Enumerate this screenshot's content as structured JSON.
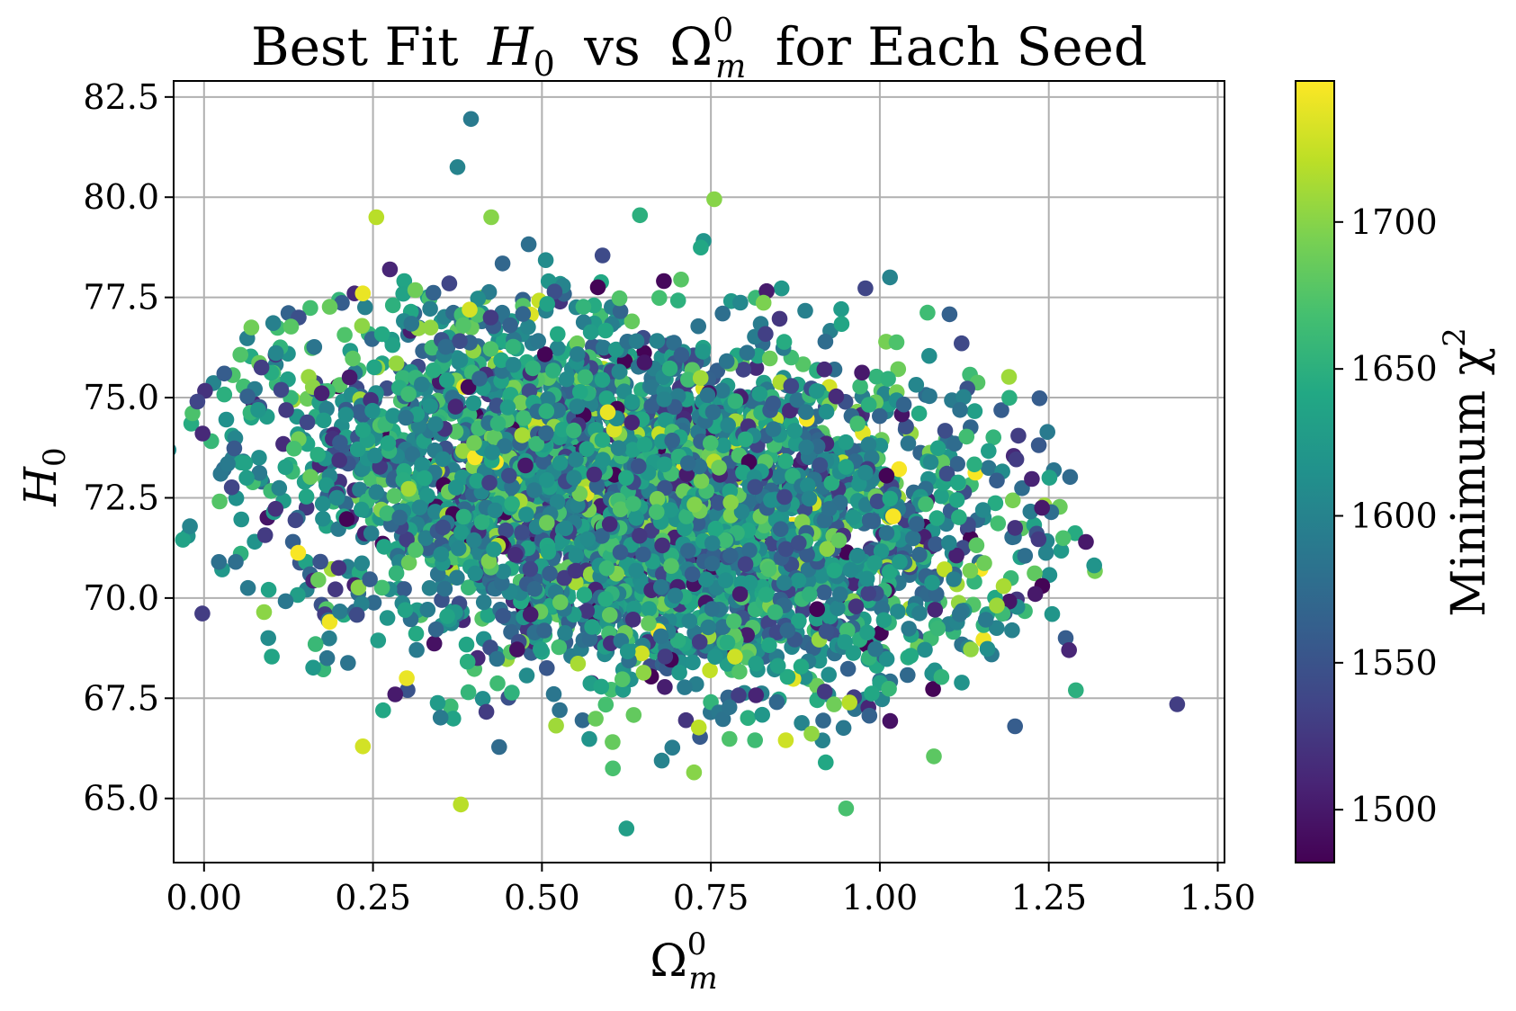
{
  "chart_data": {
    "type": "scatter",
    "title": {
      "prefix": "Best Fit",
      "h": "H",
      "h_sub": "0",
      "mid": "vs",
      "omega": "Ω",
      "omega_sup": "0",
      "omega_sub": "m",
      "suffix": "for Each Seed"
    },
    "xlabel": {
      "base": "Ω",
      "sup": "0",
      "sub": "m"
    },
    "ylabel": {
      "base": "H",
      "sub": "0"
    },
    "xlim": [
      -0.045,
      1.51
    ],
    "ylim": [
      63.4,
      82.9
    ],
    "xticks": [
      0.0,
      0.25,
      0.5,
      0.75,
      1.0,
      1.25,
      1.5
    ],
    "xtick_labels": [
      "0.00",
      "0.25",
      "0.50",
      "0.75",
      "1.00",
      "1.25",
      "1.50"
    ],
    "yticks": [
      65.0,
      67.5,
      70.0,
      72.5,
      75.0,
      77.5,
      80.0,
      82.5
    ],
    "ytick_labels": [
      "65.0",
      "67.5",
      "70.0",
      "72.5",
      "75.0",
      "77.5",
      "80.0",
      "82.5"
    ],
    "grid": true,
    "colorbar": {
      "label": "Minimum χ",
      "label_sup": "2",
      "colormap": "viridis",
      "range": [
        1482,
        1748
      ],
      "ticks": [
        1500,
        1550,
        1600,
        1650,
        1700
      ],
      "tick_labels": [
        "1500",
        "1550",
        "1600",
        "1650",
        "1700"
      ]
    },
    "cloud": {
      "description_count": 4000,
      "x_mean": 0.63,
      "x_sd": 0.26,
      "y_mean": 72.5,
      "y_sd": 2.5,
      "chi2_mean": 1610,
      "chi2_sd": 55
    },
    "points": [
      {
        "x": 0.395,
        "y": 81.95,
        "c": 1590
      },
      {
        "x": 0.375,
        "y": 80.75,
        "c": 1600
      },
      {
        "x": 0.755,
        "y": 79.95,
        "c": 1700
      },
      {
        "x": 0.255,
        "y": 79.5,
        "c": 1720
      },
      {
        "x": 0.425,
        "y": 79.5,
        "c": 1700
      },
      {
        "x": 0.645,
        "y": 79.55,
        "c": 1650
      },
      {
        "x": 0.275,
        "y": 78.2,
        "c": 1510
      },
      {
        "x": 1.015,
        "y": 78.0,
        "c": 1600
      },
      {
        "x": 0.235,
        "y": 77.6,
        "c": 1740
      },
      {
        "x": 0.07,
        "y": 76.75,
        "c": 1690
      },
      {
        "x": 0.03,
        "y": 75.6,
        "c": 1560
      },
      {
        "x": 0.085,
        "y": 75.75,
        "c": 1530
      },
      {
        "x": 1.205,
        "y": 74.05,
        "c": 1530
      },
      {
        "x": 1.24,
        "y": 72.25,
        "c": 1500
      },
      {
        "x": 1.305,
        "y": 71.4,
        "c": 1500
      },
      {
        "x": 0.022,
        "y": 70.9,
        "c": 1580
      },
      {
        "x": 0.065,
        "y": 70.25,
        "c": 1590
      },
      {
        "x": 0.095,
        "y": 69.0,
        "c": 1610
      },
      {
        "x": 1.275,
        "y": 69.0,
        "c": 1560
      },
      {
        "x": 1.28,
        "y": 68.7,
        "c": 1510
      },
      {
        "x": 1.255,
        "y": 69.6,
        "c": 1620
      },
      {
        "x": 1.29,
        "y": 67.7,
        "c": 1650
      },
      {
        "x": 1.44,
        "y": 67.35,
        "c": 1530
      },
      {
        "x": 0.3,
        "y": 68.0,
        "c": 1740
      },
      {
        "x": 0.235,
        "y": 66.3,
        "c": 1730
      },
      {
        "x": 0.265,
        "y": 67.2,
        "c": 1640
      },
      {
        "x": 0.38,
        "y": 64.85,
        "c": 1720
      },
      {
        "x": 0.625,
        "y": 64.25,
        "c": 1630
      },
      {
        "x": 0.95,
        "y": 64.75,
        "c": 1670
      },
      {
        "x": 0.92,
        "y": 65.9,
        "c": 1640
      },
      {
        "x": 0.725,
        "y": 65.65,
        "c": 1700
      },
      {
        "x": 0.605,
        "y": 65.75,
        "c": 1670
      },
      {
        "x": 1.2,
        "y": 66.8,
        "c": 1560
      },
      {
        "x": 1.08,
        "y": 66.05,
        "c": 1680
      },
      {
        "x": 0.165,
        "y": 68.85,
        "c": 1660
      },
      {
        "x": 1.2,
        "y": 71.75,
        "c": 1520
      },
      {
        "x": 1.23,
        "y": 70.1,
        "c": 1500
      },
      {
        "x": 0.035,
        "y": 73.35,
        "c": 1590
      }
    ]
  }
}
